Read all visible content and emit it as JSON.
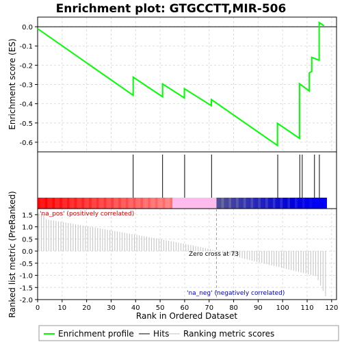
{
  "chart_data": {
    "type": "line",
    "title": "Enrichment plot: GTGCCTT,MIR-506",
    "top_panel": {
      "ylabel": "Enrichment score (ES)",
      "ylim": [
        -0.65,
        0.05
      ],
      "yticks": [
        0.0,
        -0.1,
        -0.2,
        -0.3,
        -0.4,
        -0.5,
        -0.6
      ],
      "ytick_labels": [
        "0.0",
        "-0.1",
        "-0.2",
        "-0.3",
        "-0.4",
        "-0.5",
        "-0.6"
      ],
      "series": [
        {
          "name": "Enrichment profile",
          "color": "#00ff00",
          "x": [
            0,
            39,
            39,
            51,
            51,
            59.9,
            59.9,
            70.9,
            70.9,
            97.9,
            97.9,
            106.9,
            106.9,
            110.9,
            110.9,
            111.9,
            111.9,
            114.9,
            114.9,
            116.9
          ],
          "y": [
            -0.01,
            -0.356,
            -0.262,
            -0.364,
            -0.297,
            -0.37,
            -0.322,
            -0.41,
            -0.378,
            -0.617,
            -0.502,
            -0.58,
            -0.296,
            -0.334,
            -0.24,
            -0.232,
            -0.159,
            -0.174,
            0.022,
            0.005
          ]
        }
      ]
    },
    "hits_panel": {
      "name": "Hits",
      "hit_positions": [
        39,
        51,
        60,
        71,
        98,
        107,
        108,
        113,
        115
      ]
    },
    "color_bar": {
      "positive_color": "#ff0000",
      "negative_color": "#0000ff",
      "light_positive_color": "#ffbbee",
      "crossover": 73
    },
    "bottom_panel": {
      "ylabel": "Ranked list metric (PreRanked)",
      "ylim": [
        -2.0,
        1.75
      ],
      "yticks": [
        1.5,
        1.0,
        0.5,
        0.0,
        -0.5,
        -1.0,
        -1.5,
        -2.0
      ],
      "ytick_labels": [
        "1.5",
        "1.0",
        "0.5",
        "0.0",
        "-0.5",
        "-1.0",
        "-1.5",
        "-2.0"
      ],
      "series_name": "Ranking metric scores",
      "metric_start": 1.6,
      "metric_cross": 0.0,
      "metric_end_shape": [
        -1.2,
        -1.85
      ],
      "annotations": {
        "pos_label": "'na_pos' (positively correlated)",
        "neg_label": "'na_neg' (negatively correlated)",
        "zero_cross": "Zero cross at 73"
      }
    },
    "x_axis": {
      "label": "Rank in Ordered Dataset",
      "xlim": [
        0,
        122
      ],
      "xticks": [
        0,
        10,
        20,
        30,
        40,
        50,
        60,
        70,
        80,
        90,
        100,
        110,
        120
      ],
      "xtick_labels": [
        "0",
        "10",
        "20",
        "30",
        "40",
        "50",
        "60",
        "70",
        "80",
        "90",
        "100",
        "110",
        "120"
      ],
      "n_genes": 118
    },
    "legend": {
      "placement": "bottom",
      "entries": [
        {
          "label": "Enrichment profile",
          "color": "#00ff00"
        },
        {
          "label": "Hits",
          "color": "#000000"
        },
        {
          "label": "Ranking metric scores",
          "color": "#c0c0c0"
        }
      ]
    },
    "grid": true
  }
}
